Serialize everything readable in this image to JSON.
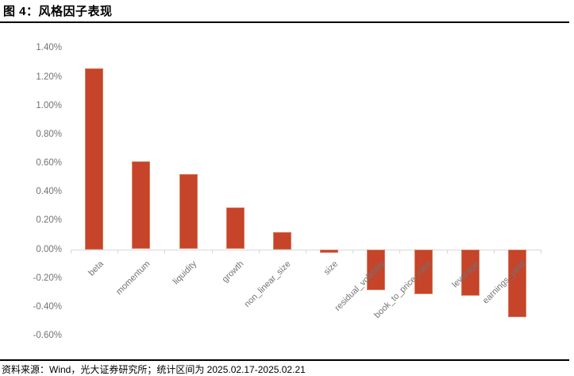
{
  "page": {
    "title": "图 4：风格因子表现",
    "source_note": "资料来源：Wind，光大证券研究所；统计区间为 2025.02.17-2025.02.21"
  },
  "chart_data": {
    "type": "bar",
    "title": "",
    "xlabel": "",
    "ylabel": "",
    "categories": [
      "beta",
      "momentum",
      "liquidity",
      "growth",
      "non_linear_size",
      "size",
      "residual_volatility",
      "book_to_price_ratio",
      "leverage",
      "earnings_yield"
    ],
    "values": [
      1.26,
      0.61,
      0.52,
      0.29,
      0.12,
      -0.02,
      -0.28,
      -0.31,
      -0.32,
      -0.47
    ],
    "unit": "%",
    "ylim": [
      -0.6,
      1.4
    ],
    "ytick_step": 0.2,
    "ytick_labels": [
      "1.40%",
      "1.20%",
      "1.00%",
      "0.80%",
      "0.60%",
      "0.40%",
      "0.20%",
      "0.00%",
      "-0.20%",
      "-0.40%",
      "-0.60%"
    ],
    "grid": false,
    "legend_position": "none",
    "colors": {
      "bar_fill": "#c5442a",
      "bar_edge": "#d97b5d",
      "axis_line": "#d9d9d9",
      "tick_label": "#737373",
      "title_text": "#000000"
    }
  }
}
